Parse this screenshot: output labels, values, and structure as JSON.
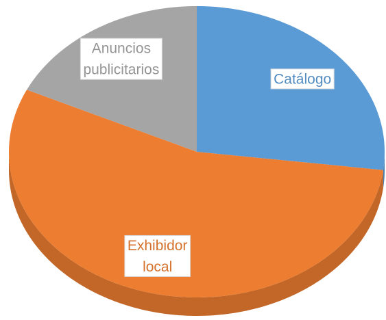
{
  "chart_data": {
    "type": "pie3d",
    "categories": [
      "Catálogo",
      "Exhibidor local",
      "Anuncios publicitarios"
    ],
    "values": [
      27,
      55,
      18
    ],
    "colors": [
      "#5b9bd5",
      "#ed7d31",
      "#a5a5a5"
    ]
  }
}
